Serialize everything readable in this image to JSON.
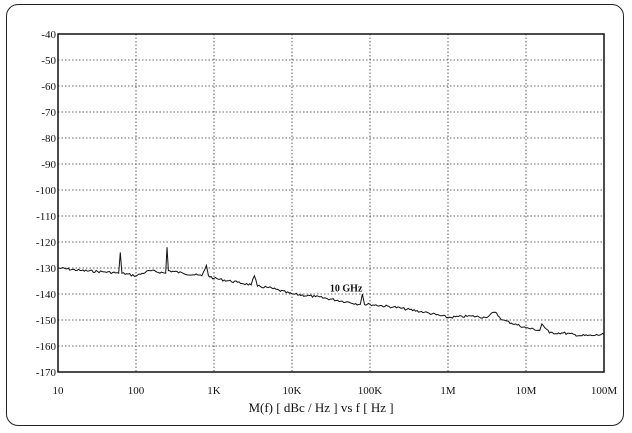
{
  "chart_data": {
    "type": "line",
    "xscale": "log",
    "xlim": [
      10,
      100000000
    ],
    "ylim": [
      -170,
      -40
    ],
    "xticks": [
      10,
      100,
      1000,
      10000,
      100000,
      1000000,
      10000000,
      100000000
    ],
    "xtick_labels": [
      "10",
      "100",
      "1K",
      "10K",
      "100K",
      "1M",
      "10M",
      "100M"
    ],
    "yticks": [
      -40,
      -50,
      -60,
      -70,
      -80,
      -90,
      -100,
      -110,
      -120,
      -130,
      -140,
      -150,
      -160,
      -170
    ],
    "ytick_labels": [
      "-40",
      "-50",
      "-60",
      "-70",
      "-80",
      "-90",
      "-100",
      "-110",
      "-120",
      "-130",
      "-140",
      "-150",
      "-160",
      "-170"
    ],
    "grid": true,
    "xlabel": "M(f) [ dBc / Hz ] vs  f  [ Hz ]",
    "ylabel": "",
    "title": "",
    "annotation": {
      "text": "10 GHz",
      "x": 70000,
      "y": -139
    },
    "series": [
      {
        "name": "",
        "x": [
          10,
          20,
          40,
          60,
          63,
          66,
          100,
          150,
          240,
          250,
          260,
          400,
          700,
          800,
          850,
          1000,
          2000,
          3000,
          3300,
          3600,
          5000,
          10000,
          20000,
          50000,
          75000,
          80000,
          85000,
          100000,
          200000,
          500000,
          1000000,
          2000000,
          3000000,
          4000000,
          5000000,
          10000000,
          15000000,
          16000000,
          20000000,
          30000000,
          50000000,
          70000000,
          100000000
        ],
        "y": [
          -130,
          -131,
          -131.5,
          -132,
          -124,
          -132,
          -133,
          -131,
          -132,
          -122,
          -131,
          -132,
          -133,
          -129,
          -133,
          -134,
          -135.5,
          -136.5,
          -133,
          -137,
          -137.5,
          -140,
          -141,
          -143,
          -144,
          -140,
          -144,
          -144,
          -145,
          -147,
          -149,
          -148.5,
          -149,
          -147,
          -150,
          -153,
          -154,
          -151.5,
          -155,
          -155,
          -156,
          -156,
          -155.5
        ]
      }
    ]
  }
}
